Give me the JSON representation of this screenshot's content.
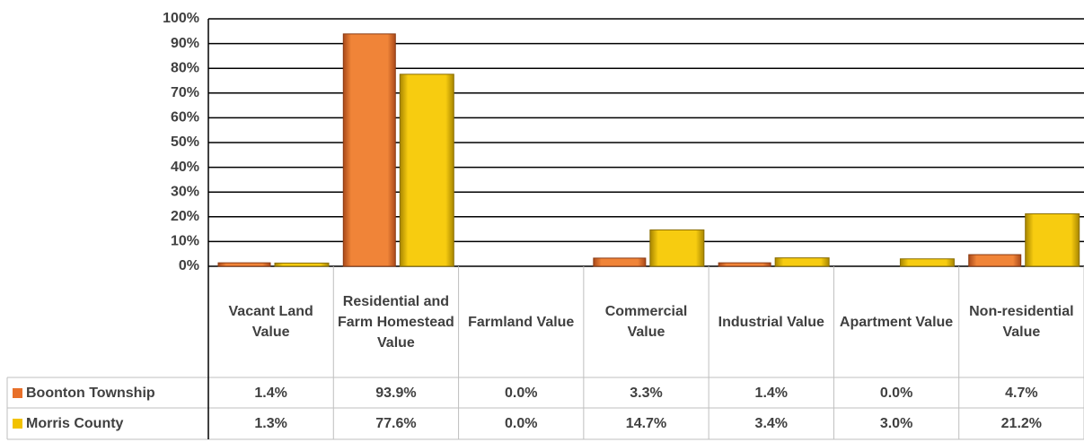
{
  "chart_data": {
    "type": "bar",
    "categories": [
      "Vacant Land Value",
      "Residential and Farm Homestead Value",
      "Farmland Value",
      "Commercial Value",
      "Industrial Value",
      "Apartment Value",
      "Non-residential Value"
    ],
    "series": [
      {
        "name": "Boonton Township",
        "color": "#e8702a",
        "values": [
          1.4,
          93.9,
          0.0,
          3.3,
          1.4,
          0.0,
          4.7
        ],
        "value_labels": [
          "1.4%",
          "93.9%",
          "0.0%",
          "3.3%",
          "1.4%",
          "0.0%",
          "4.7%"
        ]
      },
      {
        "name": "Morris County",
        "color": "#f2c200",
        "values": [
          1.3,
          77.6,
          0.0,
          14.7,
          3.4,
          3.0,
          21.2
        ],
        "value_labels": [
          "1.3%",
          "77.6%",
          "0.0%",
          "14.7%",
          "3.4%",
          "3.0%",
          "21.2%"
        ]
      }
    ],
    "ylim": [
      0,
      100
    ],
    "yticks": [
      {
        "value": 0,
        "label": "0%"
      },
      {
        "value": 10,
        "label": "10%"
      },
      {
        "value": 20,
        "label": "20%"
      },
      {
        "value": 30,
        "label": "30%"
      },
      {
        "value": 40,
        "label": "40%"
      },
      {
        "value": 50,
        "label": "50%"
      },
      {
        "value": 60,
        "label": "60%"
      },
      {
        "value": 70,
        "label": "70%"
      },
      {
        "value": 80,
        "label": "80%"
      },
      {
        "value": 90,
        "label": "90%"
      },
      {
        "value": 100,
        "label": "100%"
      }
    ],
    "grid": true
  }
}
